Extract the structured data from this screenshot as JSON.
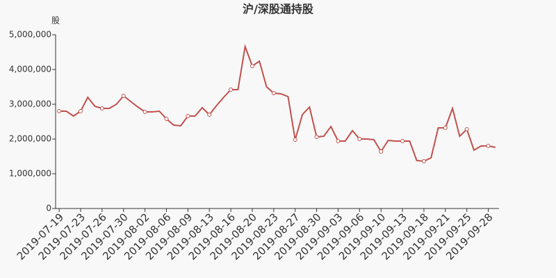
{
  "chart_data": {
    "type": "line",
    "title": "沪/深股通持股",
    "y_label": "股",
    "categories": [
      "2019-07-19",
      null,
      null,
      "2019-07-23",
      null,
      null,
      "2019-07-26",
      null,
      null,
      "2019-07-30",
      null,
      null,
      "2019-08-02",
      null,
      null,
      "2019-08-06",
      null,
      null,
      "2019-08-09",
      null,
      null,
      "2019-08-13",
      null,
      null,
      "2019-08-16",
      null,
      null,
      "2019-08-20",
      null,
      null,
      "2019-08-23",
      null,
      null,
      "2019-08-27",
      null,
      null,
      "2019-08-30",
      null,
      null,
      "2019-09-03",
      null,
      null,
      "2019-09-06",
      null,
      null,
      "2019-09-10",
      null,
      null,
      "2019-09-13",
      null,
      null,
      "2019-09-18",
      null,
      null,
      "2019-09-21",
      null,
      null,
      "2019-09-25",
      null,
      null,
      "2019-09-28",
      null
    ],
    "series": [
      {
        "name": "沪/深股通持股",
        "color": "#c0504d",
        "values": [
          2800000,
          2800000,
          2660000,
          2800000,
          3200000,
          2940000,
          2880000,
          2880000,
          3000000,
          3240000,
          3080000,
          2920000,
          2780000,
          2780000,
          2800000,
          2580000,
          2400000,
          2380000,
          2660000,
          2660000,
          2900000,
          2700000,
          2960000,
          3200000,
          3420000,
          3420000,
          4660000,
          4100000,
          4240000,
          3500000,
          3320000,
          3300000,
          3220000,
          1980000,
          2700000,
          2920000,
          2060000,
          2080000,
          2360000,
          1940000,
          1940000,
          2240000,
          2000000,
          2000000,
          1980000,
          1640000,
          1960000,
          1940000,
          1940000,
          1940000,
          1380000,
          1360000,
          1460000,
          2320000,
          2320000,
          2880000,
          2080000,
          2280000,
          1680000,
          1800000,
          1800000,
          1760000
        ]
      }
    ],
    "ylim": [
      0,
      5000000
    ],
    "yticks": [
      0,
      {
        "value": 1000000,
        "label": "1,000,000"
      },
      {
        "value": 2000000,
        "label": "2,000,000"
      },
      {
        "value": 3000000,
        "label": "3,000,000"
      },
      {
        "value": 4000000,
        "label": "4,000,000"
      },
      {
        "value": 5000000,
        "label": "5,000,000"
      }
    ],
    "grid": false
  }
}
